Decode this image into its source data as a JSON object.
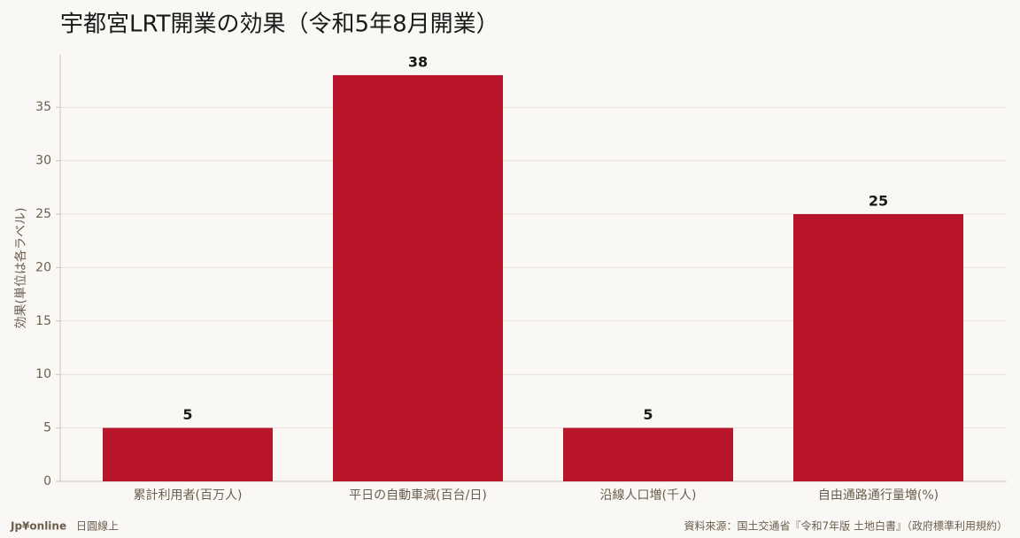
{
  "chart_data": {
    "type": "bar",
    "title": "宇都宮LRT開業の効果（令和5年8月開業）",
    "y_label": "効果(単位は各ラベル)",
    "categories": [
      "累計利用者(百万人)",
      "平日の自動車減(百台/日)",
      "沿線人口増(千人)",
      "自由通路通行量増(%)"
    ],
    "values": [
      5,
      38,
      5,
      25
    ],
    "color": "#b8152b",
    "ylim": [
      0,
      39.9
    ],
    "yticks": [
      0,
      5,
      10,
      15,
      20,
      25,
      30,
      35
    ],
    "grid": true
  },
  "footer": {
    "brand": "Jp¥online",
    "brand_sub": "日圓線上",
    "source": "資料來源：国土交通省『令和7年版 土地白書』（政府標準利用規約）"
  }
}
